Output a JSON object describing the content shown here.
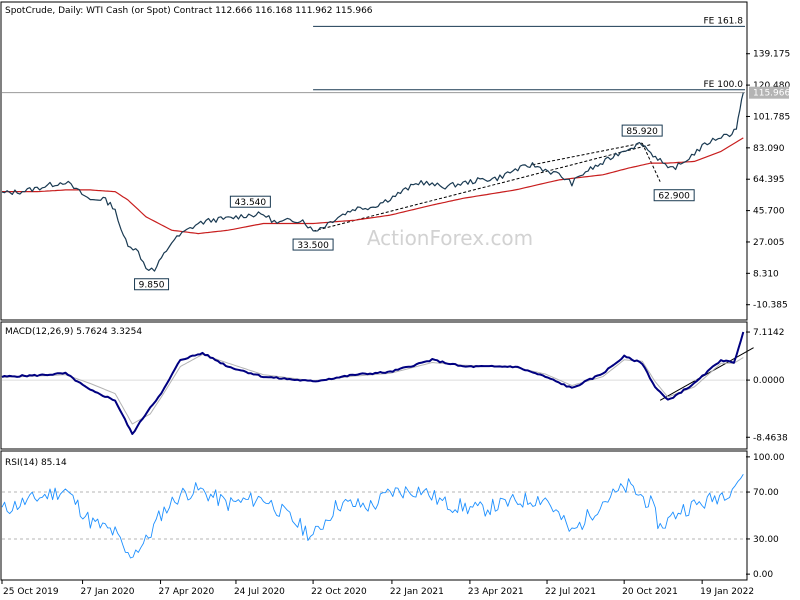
{
  "chart_data": [
    {
      "type": "line",
      "panel": "price",
      "title": "SpotCrude, Daily:  WTI Cash (or Spot) Contract  112.666 116.168 111.962 115.966",
      "ylim": [
        -19.5,
        170
      ],
      "y_ticks": [
        139.175,
        120.48,
        101.785,
        83.09,
        64.395,
        45.7,
        27.005,
        8.31,
        -10.385
      ],
      "y_tick_labels": [
        "139.175",
        "120.480",
        "101.785",
        "83.090",
        "64.395",
        "45.700",
        "27.005",
        "8.310",
        "-10.385"
      ],
      "last_price_label": "115.966",
      "last_price_color": "#b4b4b4",
      "fe_levels": [
        {
          "label": "FE 161.8",
          "value": 155.5
        },
        {
          "label": "FE 100.0",
          "value": 117.7
        }
      ],
      "annotations": [
        "9.850",
        "43.540",
        "33.500",
        "85.920",
        "62.900"
      ],
      "series": [
        {
          "role": "price",
          "color": "#1a3a52",
          "x": [
            "2019-10-25",
            "2019-11-15",
            "2019-12-05",
            "2019-12-20",
            "2020-01-07",
            "2020-01-20",
            "2020-02-05",
            "2020-02-20",
            "2020-03-05",
            "2020-03-12",
            "2020-03-20",
            "2020-04-01",
            "2020-04-10",
            "2020-04-20",
            "2020-04-28",
            "2020-05-10",
            "2020-05-25",
            "2020-06-10",
            "2020-06-25",
            "2020-07-15",
            "2020-08-05",
            "2020-08-25",
            "2020-09-10",
            "2020-09-25",
            "2020-10-10",
            "2020-10-22",
            "2020-11-02",
            "2020-11-20",
            "2020-12-10",
            "2020-12-31",
            "2021-01-20",
            "2021-02-10",
            "2021-02-25",
            "2021-03-10",
            "2021-03-25",
            "2021-04-15",
            "2021-05-05",
            "2021-05-25",
            "2021-06-15",
            "2021-07-05",
            "2021-07-20",
            "2021-08-05",
            "2021-08-20",
            "2021-09-05",
            "2021-09-25",
            "2021-10-10",
            "2021-10-25",
            "2021-11-10",
            "2021-11-20",
            "2021-12-01",
            "2021-12-10",
            "2021-12-25",
            "2022-01-10",
            "2022-01-25",
            "2022-02-10",
            "2022-02-20",
            "2022-02-28",
            "2022-03-04",
            "2022-03-08"
          ],
          "y": [
            56,
            57,
            59,
            61,
            63,
            58,
            52,
            53,
            47,
            33,
            26,
            21,
            12,
            9.85,
            17,
            27,
            33,
            38,
            40,
            41,
            43,
            43.54,
            38,
            40,
            40,
            33.5,
            36,
            42,
            47,
            48,
            53,
            59,
            63,
            61,
            60,
            62,
            64,
            65,
            70,
            73,
            70,
            67,
            62,
            69,
            74,
            79,
            83,
            85.92,
            80,
            76,
            70,
            73,
            80,
            86,
            90,
            91,
            95,
            105,
            115.966
          ]
        },
        {
          "role": "moving-average",
          "color": "#c81e1e",
          "x": [
            "2019-10-25",
            "2019-12-05",
            "2020-01-07",
            "2020-02-05",
            "2020-03-05",
            "2020-03-20",
            "2020-04-10",
            "2020-05-10",
            "2020-06-10",
            "2020-07-15",
            "2020-08-25",
            "2020-10-22",
            "2020-12-10",
            "2021-01-20",
            "2021-03-10",
            "2021-04-15",
            "2021-06-15",
            "2021-08-05",
            "2021-09-25",
            "2021-10-25",
            "2021-11-20",
            "2021-12-10",
            "2022-01-10",
            "2022-02-10",
            "2022-03-08"
          ],
          "y": [
            57,
            57,
            58,
            58,
            57,
            52,
            42,
            34,
            32,
            34,
            38,
            38,
            40,
            43,
            49,
            53,
            58,
            64,
            67,
            71,
            74,
            74,
            75,
            81,
            89
          ]
        }
      ]
    },
    {
      "type": "line",
      "panel": "macd",
      "title": "MACD(12,26,9) 5.7624 3.3254",
      "ylim": [
        -10.2,
        8.6
      ],
      "y_ticks": [
        7.1142,
        0.0,
        -8.4638
      ],
      "y_tick_labels": [
        "7.1142",
        "0.0000",
        "-8.4638"
      ],
      "series": [
        {
          "role": "macd",
          "color": "#000080",
          "x": [
            "2019-10-25",
            "2019-12-05",
            "2020-01-07",
            "2020-02-05",
            "2020-03-05",
            "2020-03-25",
            "2020-04-15",
            "2020-04-28",
            "2020-05-20",
            "2020-06-15",
            "2020-07-15",
            "2020-08-25",
            "2020-10-22",
            "2020-12-10",
            "2021-01-20",
            "2021-03-10",
            "2021-04-15",
            "2021-06-15",
            "2021-07-20",
            "2021-08-20",
            "2021-09-25",
            "2021-10-20",
            "2021-11-10",
            "2021-11-25",
            "2021-12-10",
            "2022-01-10",
            "2022-02-10",
            "2022-02-25",
            "2022-03-08"
          ],
          "y": [
            0.5,
            0.7,
            1.0,
            -1.5,
            -3.0,
            -8.0,
            -4.0,
            -2.0,
            3.0,
            4.0,
            2.0,
            0.5,
            -0.2,
            0.8,
            1.2,
            3.0,
            2.0,
            2.0,
            0.5,
            -1.2,
            1.0,
            3.5,
            2.5,
            -1.0,
            -3.0,
            -0.5,
            3.0,
            2.5,
            7.1142
          ]
        },
        {
          "role": "signal",
          "color": "#b4b4b4",
          "x": [
            "2019-10-25",
            "2019-12-05",
            "2020-01-07",
            "2020-02-05",
            "2020-03-05",
            "2020-03-25",
            "2020-04-15",
            "2020-04-28",
            "2020-05-20",
            "2020-06-15",
            "2020-07-15",
            "2020-08-25",
            "2020-10-22",
            "2020-12-10",
            "2021-01-20",
            "2021-03-10",
            "2021-04-15",
            "2021-06-15",
            "2021-07-20",
            "2021-08-20",
            "2021-09-25",
            "2021-10-20",
            "2021-11-10",
            "2021-11-25",
            "2021-12-10",
            "2022-01-10",
            "2022-02-10",
            "2022-02-25",
            "2022-03-08"
          ],
          "y": [
            0.4,
            0.6,
            0.8,
            -0.5,
            -2.0,
            -6.5,
            -5.0,
            -2.5,
            2.0,
            3.8,
            2.5,
            0.8,
            -0.1,
            0.6,
            1.0,
            2.6,
            2.2,
            1.9,
            0.9,
            -0.8,
            0.5,
            3.0,
            2.8,
            -0.2,
            -2.5,
            -1.0,
            2.5,
            2.5,
            3.3254
          ]
        }
      ]
    },
    {
      "type": "line",
      "panel": "rsi",
      "title": "RSI(14) 85.14",
      "ylim": [
        -5,
        105
      ],
      "y_ticks": [
        100,
        70,
        30,
        0
      ],
      "y_tick_labels": [
        "100.00",
        "70.00",
        "30.00",
        "0.00"
      ],
      "series": [
        {
          "role": "rsi",
          "color": "#1e90ff",
          "x": [
            "2019-10-25",
            "2019-11-15",
            "2019-12-05",
            "2020-01-07",
            "2020-02-05",
            "2020-03-05",
            "2020-03-20",
            "2020-04-10",
            "2020-04-28",
            "2020-05-20",
            "2020-06-10",
            "2020-07-15",
            "2020-08-25",
            "2020-09-25",
            "2020-10-22",
            "2020-11-20",
            "2020-12-31",
            "2021-01-20",
            "2021-02-25",
            "2021-03-25",
            "2021-05-05",
            "2021-06-15",
            "2021-07-20",
            "2021-08-20",
            "2021-09-25",
            "2021-10-25",
            "2021-11-20",
            "2021-12-01",
            "2021-12-25",
            "2022-01-25",
            "2022-02-20",
            "2022-03-08"
          ],
          "y": [
            55,
            60,
            65,
            72,
            45,
            35,
            15,
            28,
            52,
            68,
            72,
            60,
            65,
            48,
            32,
            60,
            58,
            70,
            72,
            60,
            55,
            62,
            65,
            35,
            62,
            75,
            60,
            40,
            55,
            62,
            72,
            85.14
          ]
        }
      ]
    }
  ],
  "x_axis_labels": [
    "25 Oct 2019",
    "27 Jan 2020",
    "27 Apr 2020",
    "24 Jul 2020",
    "22 Oct 2020",
    "22 Jan 2021",
    "23 Apr 2021",
    "22 Jul 2021",
    "20 Oct 2021",
    "19 Jan 2022"
  ],
  "watermark": "ActionForex.com"
}
